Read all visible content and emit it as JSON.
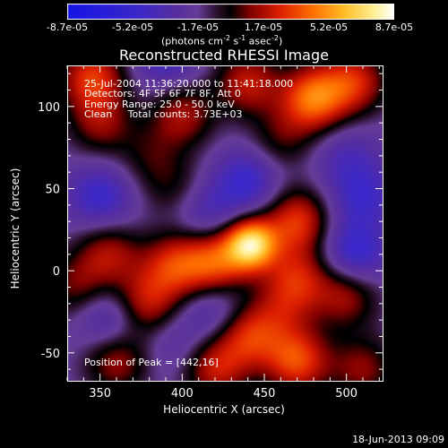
{
  "colorbar": {
    "ticks": [
      "-8.7e-05",
      "-5.2e-05",
      "-1.7e-05",
      "1.7e-05",
      "5.2e-05",
      "8.7e-05"
    ],
    "units_prefix": "(photons cm",
    "units_exp1": "-2",
    "units_mid": " s",
    "units_exp2": "-1",
    "units_mid2": " asec",
    "units_exp3": "-2",
    "units_suffix": ")"
  },
  "title": "Reconstructed RHESSI Image",
  "info": {
    "line1": "25-Jul-2004 11:36:20.000 to 11:41:18.000",
    "line2": "Detectors: 4F 5F 6F 7F 8F, Att 0",
    "line3": "Energy Range: 25.0 - 50.0 keV",
    "line4": "Clean     Total counts: 3.73E+03",
    "peak": "Position of Peak = [442,16]"
  },
  "datestamp": "18-Jun-2013 09:09",
  "chart_data": {
    "type": "heatmap",
    "title": "Reconstructed RHESSI Image",
    "xlabel": "Heliocentric X (arcsec)",
    "ylabel": "Heliocentric Y (arcsec)",
    "xlim": [
      330,
      522
    ],
    "ylim": [
      -67,
      125
    ],
    "xticks": [
      350,
      400,
      450,
      500
    ],
    "yticks": [
      -50,
      0,
      50,
      100
    ],
    "colorbar_range": [
      -8.7e-05,
      8.7e-05
    ],
    "colormap": "blue-purple-black-red-yellow-white",
    "peak": [
      442,
      16
    ],
    "blobs": [
      {
        "x": 442,
        "y": 16,
        "v": 1.0
      },
      {
        "x": 420,
        "y": 5,
        "v": 0.6
      },
      {
        "x": 395,
        "y": 3,
        "v": 0.5
      },
      {
        "x": 378,
        "y": -20,
        "v": 0.45
      },
      {
        "x": 470,
        "y": 30,
        "v": 0.55
      },
      {
        "x": 480,
        "y": 105,
        "v": 0.7
      },
      {
        "x": 505,
        "y": 115,
        "v": 0.5
      },
      {
        "x": 440,
        "y": 115,
        "v": 0.45
      },
      {
        "x": 400,
        "y": 95,
        "v": 0.4
      },
      {
        "x": 350,
        "y": 90,
        "v": 0.35
      },
      {
        "x": 345,
        "y": 118,
        "v": 0.55
      },
      {
        "x": 355,
        "y": 10,
        "v": 0.4
      },
      {
        "x": 470,
        "y": -5,
        "v": 0.45
      },
      {
        "x": 500,
        "y": -15,
        "v": 0.4
      },
      {
        "x": 440,
        "y": -40,
        "v": 0.5
      },
      {
        "x": 470,
        "y": -55,
        "v": 0.6
      },
      {
        "x": 420,
        "y": -60,
        "v": 0.45
      },
      {
        "x": 360,
        "y": -55,
        "v": 0.4
      },
      {
        "x": 510,
        "y": -60,
        "v": 0.35
      },
      {
        "x": 395,
        "y": 50,
        "v": 0.2
      },
      {
        "x": 510,
        "y": 45,
        "v": -0.3
      },
      {
        "x": 440,
        "y": 55,
        "v": -0.35
      },
      {
        "x": 415,
        "y": 35,
        "v": -0.25
      },
      {
        "x": 350,
        "y": 45,
        "v": -0.35
      },
      {
        "x": 355,
        "y": -30,
        "v": -0.3
      },
      {
        "x": 505,
        "y": 10,
        "v": -0.4
      },
      {
        "x": 500,
        "y": 70,
        "v": -0.2
      },
      {
        "x": 420,
        "y": -25,
        "v": -0.25
      },
      {
        "x": 390,
        "y": 130,
        "v": -0.3
      },
      {
        "x": 460,
        "y": 80,
        "v": 0.25
      },
      {
        "x": 380,
        "y": 70,
        "v": 0.2
      },
      {
        "x": 460,
        "y": -25,
        "v": 0.25
      },
      {
        "x": 335,
        "y": -10,
        "v": 0.3
      },
      {
        "x": 395,
        "y": -45,
        "v": -0.15
      }
    ]
  }
}
